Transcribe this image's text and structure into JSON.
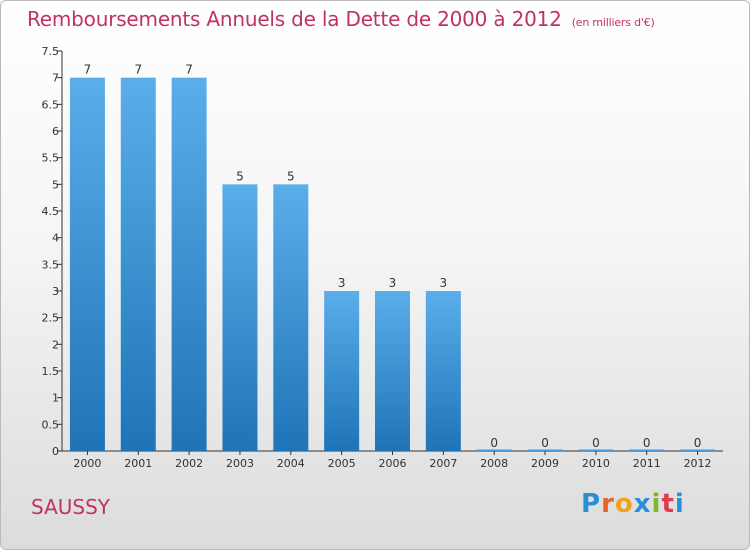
{
  "title": "Remboursements Annuels de la Dette de 2000 à 2012",
  "unit_label": "(en milliers d'€)",
  "commune": "SAUSSY",
  "logo": {
    "letters": [
      "P",
      "r",
      "o",
      "x",
      "i",
      "t",
      "i"
    ],
    "colors": [
      "#2a8fd6",
      "#e8632a",
      "#f4a11c",
      "#2a8fd6",
      "#7ab929",
      "#e23b4f",
      "#2a8fd6"
    ]
  },
  "chart_data": {
    "type": "bar",
    "categories": [
      "2000",
      "2001",
      "2002",
      "2003",
      "2004",
      "2005",
      "2006",
      "2007",
      "2008",
      "2009",
      "2010",
      "2011",
      "2012"
    ],
    "values": [
      7,
      7,
      7,
      5,
      5,
      3,
      3,
      3,
      0,
      0,
      0,
      0,
      0
    ],
    "data_labels": [
      "7",
      "7",
      "7",
      "5",
      "5",
      "3",
      "3",
      "3",
      "0",
      "0",
      "0",
      "0",
      "0"
    ],
    "ylim": [
      0,
      7.5
    ],
    "yticks": [
      "0",
      "0.5",
      "1",
      "1.5",
      "2",
      "2.5",
      "3",
      "3.5",
      "4",
      "4.5",
      "5",
      "5.5",
      "6",
      "6.5",
      "7",
      "7.5"
    ],
    "grid": false,
    "bar_color_top": "#5aaeea",
    "bar_color_bottom": "#1f74b8"
  }
}
